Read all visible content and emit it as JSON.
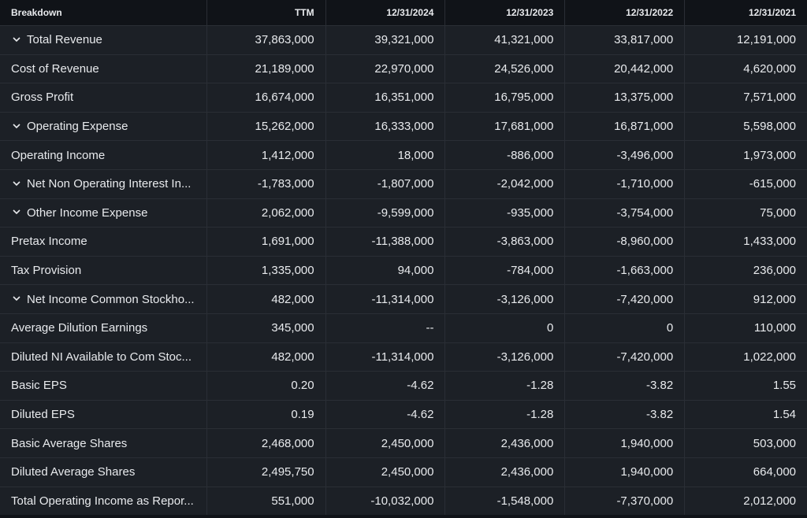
{
  "header": {
    "breakdown": "Breakdown",
    "columns": [
      "TTM",
      "12/31/2024",
      "12/31/2023",
      "12/31/2022",
      "12/31/2021"
    ]
  },
  "rows": [
    {
      "label": "Total Revenue",
      "expandable": true,
      "values": [
        "37,863,000",
        "39,321,000",
        "41,321,000",
        "33,817,000",
        "12,191,000"
      ]
    },
    {
      "label": "Cost of Revenue",
      "expandable": false,
      "values": [
        "21,189,000",
        "22,970,000",
        "24,526,000",
        "20,442,000",
        "4,620,000"
      ]
    },
    {
      "label": "Gross Profit",
      "expandable": false,
      "values": [
        "16,674,000",
        "16,351,000",
        "16,795,000",
        "13,375,000",
        "7,571,000"
      ]
    },
    {
      "label": "Operating Expense",
      "expandable": true,
      "values": [
        "15,262,000",
        "16,333,000",
        "17,681,000",
        "16,871,000",
        "5,598,000"
      ]
    },
    {
      "label": "Operating Income",
      "expandable": false,
      "values": [
        "1,412,000",
        "18,000",
        "-886,000",
        "-3,496,000",
        "1,973,000"
      ]
    },
    {
      "label": "Net Non Operating Interest In...",
      "expandable": true,
      "values": [
        "-1,783,000",
        "-1,807,000",
        "-2,042,000",
        "-1,710,000",
        "-615,000"
      ]
    },
    {
      "label": "Other Income Expense",
      "expandable": true,
      "values": [
        "2,062,000",
        "-9,599,000",
        "-935,000",
        "-3,754,000",
        "75,000"
      ]
    },
    {
      "label": "Pretax Income",
      "expandable": false,
      "values": [
        "1,691,000",
        "-11,388,000",
        "-3,863,000",
        "-8,960,000",
        "1,433,000"
      ]
    },
    {
      "label": "Tax Provision",
      "expandable": false,
      "values": [
        "1,335,000",
        "94,000",
        "-784,000",
        "-1,663,000",
        "236,000"
      ]
    },
    {
      "label": "Net Income Common Stockho...",
      "expandable": true,
      "values": [
        "482,000",
        "-11,314,000",
        "-3,126,000",
        "-7,420,000",
        "912,000"
      ]
    },
    {
      "label": "Average Dilution Earnings",
      "expandable": false,
      "values": [
        "345,000",
        "--",
        "0",
        "0",
        "110,000"
      ]
    },
    {
      "label": "Diluted NI Available to Com Stoc...",
      "expandable": false,
      "values": [
        "482,000",
        "-11,314,000",
        "-3,126,000",
        "-7,420,000",
        "1,022,000"
      ]
    },
    {
      "label": "Basic EPS",
      "expandable": false,
      "values": [
        "0.20",
        "-4.62",
        "-1.28",
        "-3.82",
        "1.55"
      ]
    },
    {
      "label": "Diluted EPS",
      "expandable": false,
      "values": [
        "0.19",
        "-4.62",
        "-1.28",
        "-3.82",
        "1.54"
      ]
    },
    {
      "label": "Basic Average Shares",
      "expandable": false,
      "values": [
        "2,468,000",
        "2,450,000",
        "2,436,000",
        "1,940,000",
        "503,000"
      ]
    },
    {
      "label": "Diluted Average Shares",
      "expandable": false,
      "values": [
        "2,495,750",
        "2,450,000",
        "2,436,000",
        "1,940,000",
        "664,000"
      ]
    },
    {
      "label": "Total Operating Income as Repor...",
      "expandable": false,
      "values": [
        "551,000",
        "-10,032,000",
        "-1,548,000",
        "-7,370,000",
        "2,012,000"
      ]
    }
  ],
  "icons": {
    "expand": "chevron-down-icon"
  },
  "colors": {
    "background": "#101318",
    "cell": "#1c2026",
    "border": "#2a2e35",
    "text": "#e8eaed"
  }
}
